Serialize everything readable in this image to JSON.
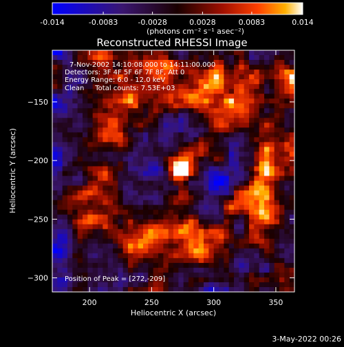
{
  "chart_data": {
    "type": "heatmap",
    "title": "Reconstructed RHESSI Image",
    "xlabel": "Heliocentric X (arcsec)",
    "ylabel": "Heliocentric Y (arcsec)",
    "xlim": [
      170,
      365
    ],
    "ylim": [
      -312,
      -106
    ],
    "x_ticks": [
      200,
      250,
      300,
      350
    ],
    "y_ticks": [
      -150,
      -200,
      -250,
      -300
    ],
    "colorbar": {
      "range": [
        -0.014,
        0.014
      ],
      "tick_values": [
        -0.014,
        -0.0083,
        -0.0028,
        0.0028,
        0.0083,
        0.014
      ],
      "tick_labels": [
        "-0.014",
        "-0.0083",
        "-0.0028",
        "0.0028",
        "0.0083",
        "0.014"
      ],
      "unit_label": "(photons cm⁻² s⁻¹ asec⁻²)",
      "stops": [
        [
          0.0,
          "#0000ff"
        ],
        [
          0.28,
          "#3a1670"
        ],
        [
          0.5,
          "#1a0000"
        ],
        [
          0.68,
          "#a01000"
        ],
        [
          0.82,
          "#ff4000"
        ],
        [
          0.93,
          "#ffb000"
        ],
        [
          1.0,
          "#ffffff"
        ]
      ]
    },
    "grid": {
      "nx": 48,
      "ny": 50
    },
    "peak": {
      "x": 272,
      "y": -209,
      "value": 0.014
    },
    "annotations": [
      "7-Nov-2002 14:10:08.000 to 14:11:00.000",
      "Detectors: 3F 4F 5F 6F 7F 8F, Att 0",
      "Energy Range: 6.0 - 12.0 keV",
      "Clean     Total counts: 7.53E+03"
    ],
    "peak_label": "Position of Peak = [272,-209]"
  },
  "footer": {
    "date": "3-May-2022 00:26"
  }
}
